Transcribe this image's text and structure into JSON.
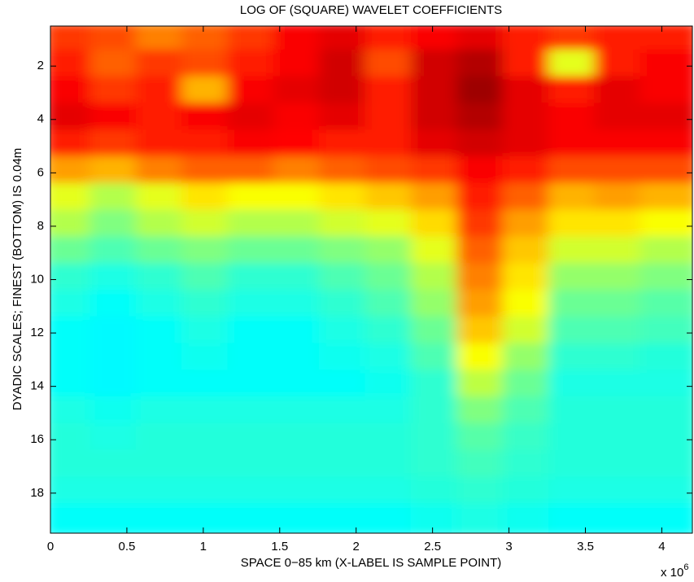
{
  "chart_data": {
    "type": "heatmap",
    "title": "LOG OF (SQUARE) WAVELET COEFFICIENTS",
    "x_label": "SPACE 0−85 km (X-LABEL IS SAMPLE POINT)",
    "y_label": "DYADIC SCALES; FINEST (BOTTOM) IS 0.04m",
    "x_multiplier": {
      "base": "x 10",
      "exponent": "6"
    },
    "colormap": "jet",
    "clim": [
      0,
      1
    ],
    "xlim": [
      0,
      4200000
    ],
    "ylim": [
      19.5,
      0.5
    ],
    "xticks": [
      0,
      {
        "value": 500000,
        "label": "0.5"
      },
      {
        "value": 1000000,
        "label": "1"
      },
      {
        "value": 1500000,
        "label": "1.5"
      },
      {
        "value": 2000000,
        "label": "2"
      },
      {
        "value": 2500000,
        "label": "2.5"
      },
      {
        "value": 3000000,
        "label": "3"
      },
      {
        "value": 3500000,
        "label": "3.5"
      },
      {
        "value": 4000000,
        "label": "4"
      }
    ],
    "yticks": [
      2,
      4,
      6,
      8,
      10,
      12,
      14,
      16,
      18
    ],
    "x": [
      150000,
      450000,
      750000,
      1050000,
      1350000,
      1650000,
      1950000,
      2250000,
      2550000,
      2850000,
      3150000,
      3450000,
      3750000,
      4050000
    ],
    "y": [
      1,
      2,
      3,
      4,
      5,
      6,
      7,
      8,
      9,
      10,
      11,
      12,
      13,
      14,
      15,
      16,
      17,
      18,
      19
    ],
    "z": [
      [
        0.82,
        0.8,
        0.75,
        0.78,
        0.82,
        0.88,
        0.9,
        0.85,
        0.88,
        0.9,
        0.85,
        0.82,
        0.85,
        0.85
      ],
      [
        0.85,
        0.78,
        0.82,
        0.8,
        0.85,
        0.88,
        0.92,
        0.8,
        0.92,
        0.95,
        0.85,
        0.6,
        0.85,
        0.88
      ],
      [
        0.88,
        0.82,
        0.85,
        0.7,
        0.88,
        0.9,
        0.92,
        0.85,
        0.92,
        0.97,
        0.9,
        0.85,
        0.9,
        0.88
      ],
      [
        0.9,
        0.88,
        0.85,
        0.88,
        0.9,
        0.88,
        0.9,
        0.85,
        0.92,
        0.95,
        0.9,
        0.88,
        0.9,
        0.9
      ],
      [
        0.85,
        0.82,
        0.85,
        0.85,
        0.88,
        0.87,
        0.85,
        0.85,
        0.9,
        0.92,
        0.9,
        0.88,
        0.88,
        0.88
      ],
      [
        0.72,
        0.7,
        0.75,
        0.78,
        0.78,
        0.75,
        0.78,
        0.8,
        0.82,
        0.88,
        0.85,
        0.8,
        0.8,
        0.8
      ],
      [
        0.6,
        0.55,
        0.6,
        0.65,
        0.62,
        0.62,
        0.65,
        0.68,
        0.72,
        0.85,
        0.78,
        0.7,
        0.72,
        0.7
      ],
      [
        0.55,
        0.5,
        0.55,
        0.58,
        0.55,
        0.55,
        0.58,
        0.6,
        0.66,
        0.82,
        0.72,
        0.65,
        0.65,
        0.62
      ],
      [
        0.48,
        0.45,
        0.48,
        0.5,
        0.48,
        0.48,
        0.5,
        0.52,
        0.6,
        0.78,
        0.68,
        0.58,
        0.58,
        0.55
      ],
      [
        0.42,
        0.4,
        0.42,
        0.45,
        0.42,
        0.42,
        0.45,
        0.48,
        0.55,
        0.75,
        0.65,
        0.52,
        0.52,
        0.5
      ],
      [
        0.4,
        0.38,
        0.4,
        0.42,
        0.4,
        0.4,
        0.42,
        0.45,
        0.52,
        0.72,
        0.62,
        0.48,
        0.48,
        0.46
      ],
      [
        0.38,
        0.37,
        0.38,
        0.4,
        0.38,
        0.38,
        0.4,
        0.42,
        0.48,
        0.68,
        0.58,
        0.45,
        0.45,
        0.44
      ],
      [
        0.38,
        0.37,
        0.38,
        0.39,
        0.38,
        0.38,
        0.39,
        0.4,
        0.45,
        0.62,
        0.52,
        0.42,
        0.42,
        0.41
      ],
      [
        0.38,
        0.37,
        0.38,
        0.38,
        0.38,
        0.38,
        0.38,
        0.39,
        0.42,
        0.56,
        0.48,
        0.4,
        0.4,
        0.4
      ],
      [
        0.4,
        0.39,
        0.4,
        0.4,
        0.4,
        0.4,
        0.4,
        0.4,
        0.42,
        0.5,
        0.45,
        0.41,
        0.41,
        0.41
      ],
      [
        0.41,
        0.4,
        0.41,
        0.41,
        0.41,
        0.41,
        0.41,
        0.41,
        0.42,
        0.46,
        0.43,
        0.41,
        0.41,
        0.41
      ],
      [
        0.41,
        0.41,
        0.41,
        0.41,
        0.41,
        0.41,
        0.41,
        0.41,
        0.42,
        0.44,
        0.42,
        0.41,
        0.41,
        0.41
      ],
      [
        0.4,
        0.4,
        0.4,
        0.4,
        0.4,
        0.4,
        0.4,
        0.4,
        0.41,
        0.42,
        0.41,
        0.4,
        0.4,
        0.4
      ],
      [
        0.38,
        0.38,
        0.38,
        0.38,
        0.38,
        0.38,
        0.38,
        0.38,
        0.39,
        0.4,
        0.39,
        0.38,
        0.38,
        0.38
      ]
    ]
  }
}
